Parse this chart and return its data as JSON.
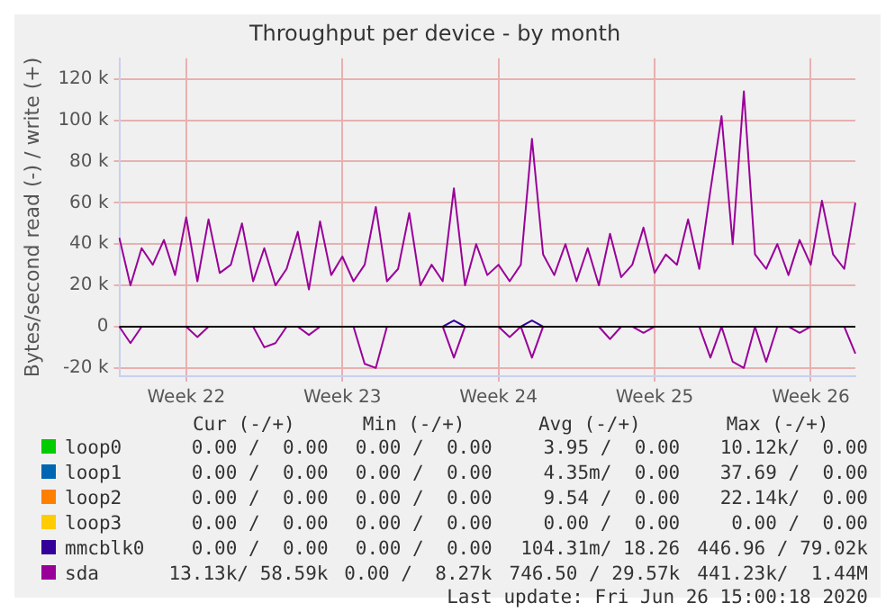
{
  "chart_data": {
    "type": "line",
    "title": "Throughput per device - by month",
    "ylabel": "Bytes/second read (-) / write (+)",
    "categories": [
      null,
      null,
      null,
      null,
      null,
      null,
      "Week 22",
      null,
      null,
      null,
      null,
      null,
      null,
      null,
      null,
      null,
      null,
      null,
      null,
      null,
      "Week 23",
      null,
      null,
      null,
      null,
      null,
      null,
      null,
      null,
      null,
      null,
      null,
      null,
      null,
      "Week 24",
      null,
      null,
      null,
      null,
      null,
      null,
      null,
      null,
      null,
      null,
      null,
      null,
      null,
      "Week 25",
      null,
      null,
      null,
      null,
      null,
      null,
      null,
      null,
      null,
      null,
      null,
      null,
      null,
      "Week 26",
      null,
      null,
      null,
      null
    ],
    "ylim": [
      -24000,
      130000
    ],
    "yticks": [
      {
        "value": -20000,
        "label": "-20 k"
      },
      0,
      {
        "value": 20000,
        "label": "20 k"
      },
      {
        "value": 40000,
        "label": "40 k"
      },
      {
        "value": 60000,
        "label": "60 k"
      },
      {
        "value": 80000,
        "label": "80 k"
      },
      {
        "value": 100000,
        "label": "100 k"
      },
      {
        "value": 120000,
        "label": "120 k"
      }
    ],
    "grid": true,
    "legend": "bottom",
    "marker": "none",
    "series": [
      {
        "name": "loop0",
        "color": "#00cc00",
        "values": [
          null,
          null,
          null,
          null,
          null,
          null,
          null,
          null,
          null,
          null,
          null,
          null,
          null,
          null,
          null,
          null,
          null,
          null,
          null,
          null,
          null,
          null,
          null,
          null,
          null,
          null,
          null,
          null,
          null,
          null,
          null,
          null,
          null,
          null,
          null,
          null,
          null,
          null,
          null,
          null,
          null,
          null,
          null,
          null,
          null,
          null,
          null,
          null,
          null,
          null,
          null,
          null,
          null,
          null,
          null,
          null,
          null,
          null,
          null,
          null,
          null,
          null,
          null,
          null,
          null,
          null,
          null
        ]
      },
      {
        "name": "loop1",
        "color": "#0066b3",
        "values": [
          null,
          null,
          null,
          null,
          null,
          null,
          null,
          null,
          null,
          null,
          null,
          null,
          null,
          null,
          null,
          null,
          null,
          null,
          null,
          null,
          null,
          null,
          null,
          null,
          null,
          null,
          null,
          null,
          null,
          null,
          null,
          null,
          null,
          null,
          null,
          null,
          null,
          null,
          null,
          null,
          null,
          null,
          null,
          null,
          null,
          null,
          null,
          null,
          null,
          null,
          null,
          null,
          null,
          null,
          null,
          null,
          null,
          null,
          null,
          null,
          null,
          null,
          null,
          null,
          null,
          null,
          null
        ]
      },
      {
        "name": "loop2",
        "color": "#ff8000",
        "values": [
          null,
          null,
          null,
          null,
          null,
          null,
          null,
          null,
          null,
          null,
          null,
          null,
          null,
          null,
          null,
          null,
          null,
          null,
          null,
          null,
          null,
          null,
          null,
          null,
          null,
          null,
          null,
          null,
          null,
          null,
          null,
          null,
          null,
          null,
          null,
          null,
          null,
          null,
          null,
          null,
          null,
          null,
          null,
          null,
          null,
          null,
          null,
          null,
          null,
          null,
          null,
          null,
          null,
          null,
          null,
          null,
          null,
          null,
          null,
          null,
          null,
          null,
          null,
          null,
          null,
          null,
          null
        ]
      },
      {
        "name": "loop3",
        "color": "#ffcc00",
        "values": [
          null,
          null,
          null,
          null,
          null,
          null,
          null,
          null,
          null,
          null,
          null,
          null,
          null,
          null,
          null,
          null,
          null,
          null,
          null,
          null,
          null,
          null,
          null,
          null,
          null,
          null,
          null,
          null,
          null,
          null,
          null,
          null,
          null,
          null,
          null,
          null,
          null,
          null,
          null,
          null,
          null,
          null,
          null,
          null,
          null,
          null,
          null,
          null,
          null,
          null,
          null,
          null,
          null,
          null,
          null,
          null,
          null,
          null,
          null,
          null,
          null,
          null,
          null,
          null,
          null,
          null,
          null
        ]
      },
      {
        "name": "mmcblk0",
        "color": "#330099",
        "values": [
          null,
          null,
          null,
          null,
          null,
          null,
          null,
          null,
          null,
          null,
          null,
          null,
          null,
          null,
          null,
          null,
          null,
          null,
          null,
          null,
          null,
          null,
          null,
          null,
          null,
          null,
          null,
          null,
          null,
          0,
          3000,
          0,
          null,
          null,
          null,
          null,
          0,
          3000,
          0,
          null,
          null,
          null,
          null,
          null,
          null,
          null,
          null,
          null,
          null,
          null,
          null,
          null,
          null,
          null,
          null,
          null,
          null,
          null,
          null,
          null,
          null,
          null,
          null,
          null,
          null,
          null,
          null
        ]
      },
      {
        "name": "sda",
        "color": "#990099",
        "values": [
          43000,
          20000,
          38000,
          30000,
          42000,
          25000,
          53000,
          22000,
          52000,
          26000,
          30000,
          50000,
          22000,
          38000,
          20000,
          28000,
          46000,
          18000,
          51000,
          25000,
          34000,
          22000,
          30000,
          58000,
          22000,
          28000,
          55000,
          20000,
          30000,
          22000,
          67000,
          20000,
          40000,
          25000,
          30000,
          22000,
          30000,
          91000,
          35000,
          25000,
          40000,
          22000,
          38000,
          20000,
          45000,
          24000,
          30000,
          48000,
          26000,
          35000,
          30000,
          52000,
          28000,
          66000,
          102000,
          40000,
          114000,
          35000,
          28000,
          40000,
          25000,
          42000,
          30000,
          61000,
          35000,
          28000,
          60000
        ]
      },
      {
        "color": "#990099",
        "values": [
          0,
          -8000,
          0,
          0,
          0,
          0,
          0,
          -5000,
          0,
          0,
          0,
          0,
          0,
          -10000,
          -8000,
          0,
          0,
          -4000,
          0,
          0,
          0,
          0,
          -18000,
          -20000,
          0,
          0,
          0,
          0,
          0,
          0,
          -15000,
          0,
          0,
          0,
          0,
          -5000,
          0,
          -15000,
          0,
          0,
          0,
          0,
          0,
          0,
          -6000,
          0,
          0,
          -3000,
          0,
          0,
          0,
          0,
          0,
          -15000,
          0,
          -17000,
          -20000,
          0,
          -17000,
          0,
          0,
          -3000,
          0,
          0,
          0,
          0,
          -13000
        ]
      }
    ],
    "annotations": [
      "Cur (-/+)",
      "Min (-/+)",
      "Avg (-/+)",
      "Max (-/+)",
      "0.00 /  0.00",
      "0.00 /  0.00",
      "3.95 /  0.00",
      "10.12k/  0.00",
      "0.00 /  0.00",
      "0.00 /  0.00",
      "4.35m/  0.00",
      "37.69 /  0.00",
      "0.00 /  0.00",
      "0.00 /  0.00",
      "9.54 /  0.00",
      "22.14k/  0.00",
      "0.00 /  0.00",
      "0.00 /  0.00",
      "0.00 /  0.00",
      "0.00 /  0.00",
      "0.00 /  0.00",
      "0.00 /  0.00",
      "104.31m/ 18.26",
      "446.96 / 79.02k",
      "13.13k/ 58.59k",
      "0.00 /  8.27k",
      "746.50 / 29.57k",
      "441.23k/  1.44M",
      "Last update: Fri Jun 26 15:00:18 2020"
    ]
  }
}
